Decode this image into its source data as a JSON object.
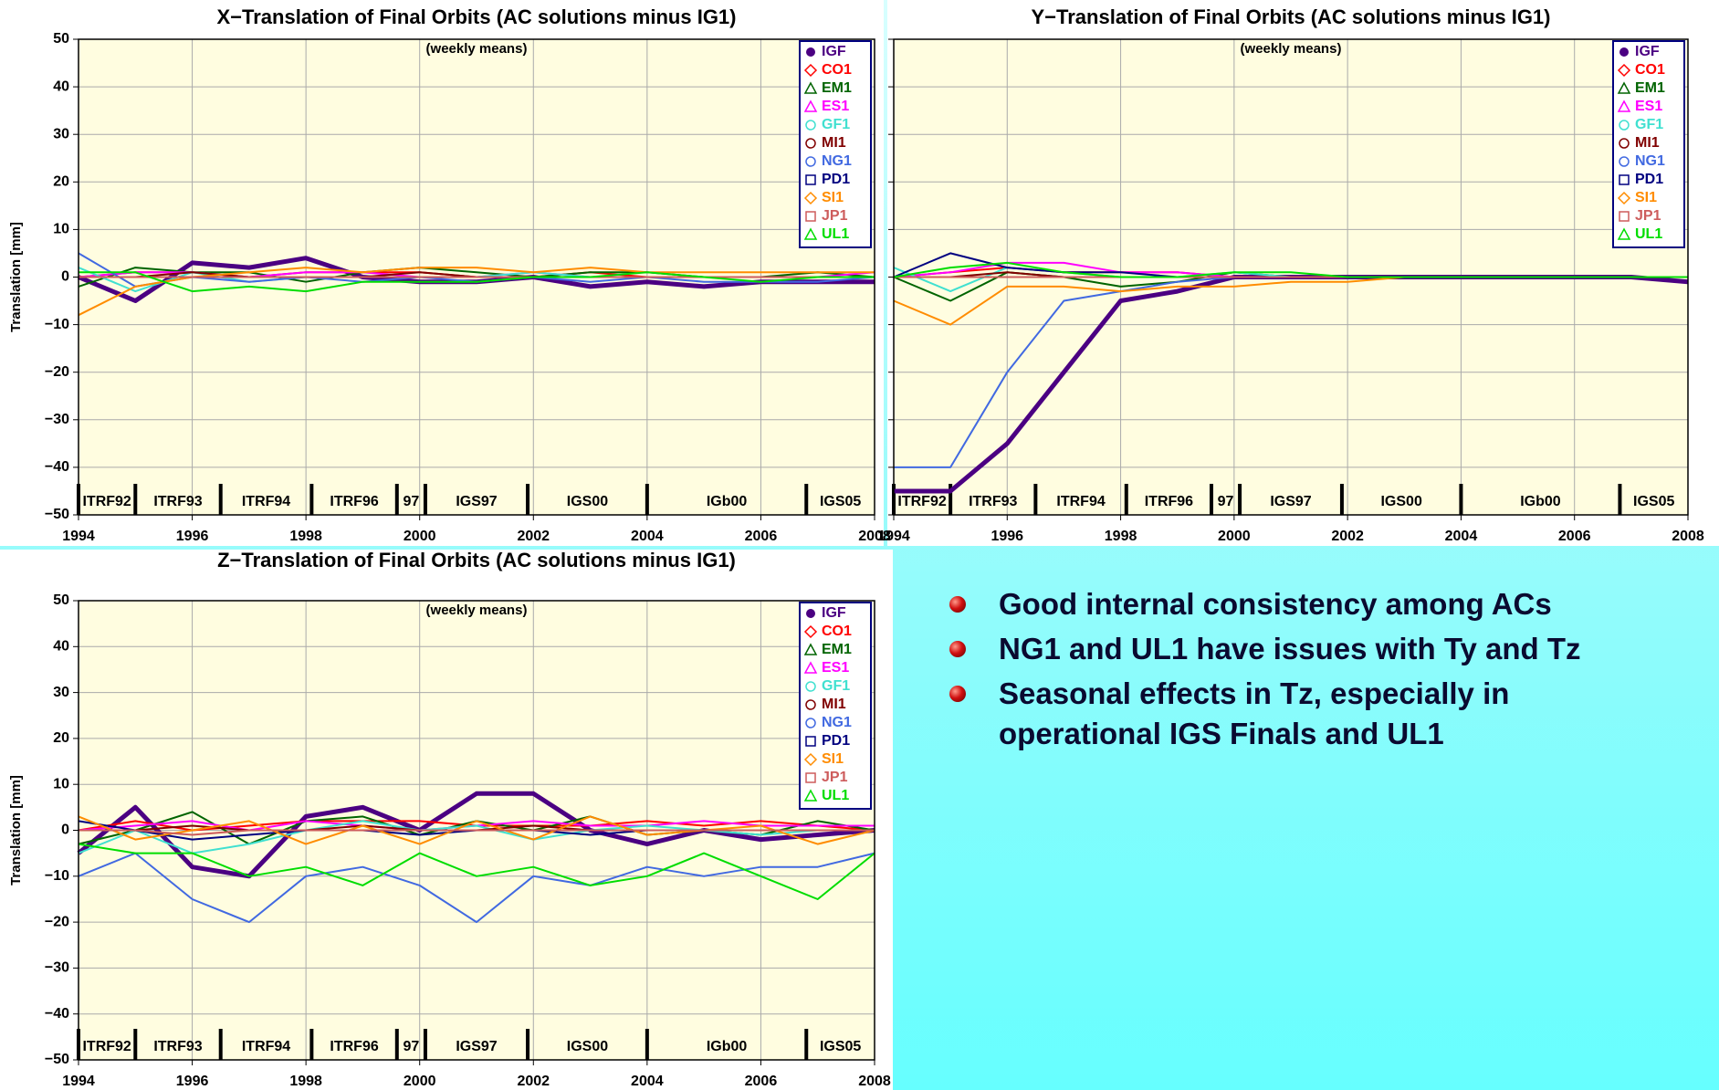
{
  "chart_data": [
    {
      "type": "line",
      "title": "X−Translation of Final Orbits (AC solutions minus IG1)",
      "subtitle": "(weekly means)",
      "ylabel": "Translation [mm]",
      "x": [
        1994,
        1995,
        1996,
        1997,
        1998,
        1999,
        2000,
        2001,
        2002,
        2003,
        2004,
        2005,
        2006,
        2007,
        2008
      ],
      "xlim": [
        1994,
        2008
      ],
      "xticks": [
        1994,
        1996,
        1998,
        2000,
        2002,
        2004,
        2006,
        2008
      ],
      "ylim": [
        -50,
        50
      ],
      "yticks": [
        {
          "value": -50,
          "label": "−50"
        },
        {
          "value": -40,
          "label": "−40"
        },
        {
          "value": -30,
          "label": "−30"
        },
        {
          "value": -20,
          "label": "−20"
        },
        {
          "value": -10,
          "label": "−10"
        },
        0,
        10,
        20,
        30,
        40,
        50
      ],
      "show_ytick_labels": true,
      "grid": true,
      "frames": [
        {
          "label": "ITRF92",
          "start": 1994.0
        },
        {
          "label": "ITRF93",
          "start": 1995.0
        },
        {
          "label": "ITRF94",
          "start": 1996.5
        },
        {
          "label": "ITRF96",
          "start": 1998.1
        },
        {
          "label": "97",
          "start": 1999.6
        },
        {
          "label": "IGS97",
          "start": 2000.1
        },
        {
          "label": "IGS00",
          "start": 2001.9
        },
        {
          "label": "IGb00",
          "start": 2004.0
        },
        {
          "label": "IGS05",
          "start": 2006.8
        }
      ],
      "series": [
        {
          "name": "IGF",
          "color": "#4b0082",
          "marker": "dot",
          "values": [
            0,
            -5,
            3,
            2,
            4,
            0,
            -1,
            -1,
            0,
            -2,
            -1,
            -2,
            -1,
            -1,
            -1
          ]
        },
        {
          "name": "CO1",
          "color": "#ff0000",
          "marker": "diamond",
          "values": [
            0,
            1,
            1,
            0,
            1,
            1,
            1,
            0,
            0,
            1,
            0,
            0,
            0,
            0,
            0
          ]
        },
        {
          "name": "EM1",
          "color": "#006400",
          "marker": "triangle",
          "values": [
            -2,
            2,
            1,
            1,
            -1,
            1,
            2,
            1,
            0,
            1,
            1,
            0,
            0,
            1,
            0
          ]
        },
        {
          "name": "ES1",
          "color": "#ff00ff",
          "marker": "triangle",
          "values": [
            0,
            1,
            1,
            0,
            1,
            1,
            0,
            0,
            1,
            0,
            0,
            0,
            0,
            0,
            1
          ]
        },
        {
          "name": "GF1",
          "color": "#40e0d0",
          "marker": "circle",
          "values": [
            2,
            -3,
            1,
            -1,
            0,
            0,
            0,
            0,
            1,
            0,
            0,
            0,
            0,
            0,
            0
          ]
        },
        {
          "name": "MI1",
          "color": "#800000",
          "marker": "circle",
          "values": [
            0,
            0,
            1,
            0,
            0,
            0,
            1,
            0,
            0,
            0,
            0,
            0,
            0,
            0,
            0
          ]
        },
        {
          "name": "NG1",
          "color": "#4169e1",
          "marker": "circle",
          "values": [
            5,
            -2,
            0,
            -1,
            0,
            -1,
            0,
            -1,
            0,
            -1,
            0,
            -1,
            -1,
            -1,
            0
          ]
        },
        {
          "name": "PD1",
          "color": "#000080",
          "marker": "square",
          "values": [
            0,
            0,
            0,
            0,
            0,
            0,
            0,
            0,
            0,
            0,
            0,
            0,
            0,
            0,
            0
          ]
        },
        {
          "name": "SI1",
          "color": "#ff8c00",
          "marker": "diamond",
          "values": [
            -8,
            -2,
            0,
            1,
            2,
            1,
            2,
            2,
            1,
            2,
            1,
            1,
            1,
            1,
            1
          ]
        },
        {
          "name": "JP1",
          "color": "#cd5c5c",
          "marker": "square",
          "values": [
            0,
            0,
            0,
            0,
            0,
            0,
            0,
            0,
            0,
            0,
            0,
            0,
            0,
            0,
            0
          ]
        },
        {
          "name": "UL1",
          "color": "#00dd00",
          "marker": "triangle",
          "values": [
            1,
            1,
            -3,
            -2,
            -3,
            -1,
            -1,
            -1,
            0,
            0,
            1,
            0,
            -1,
            0,
            0
          ]
        }
      ]
    },
    {
      "type": "line",
      "title": "Y−Translation of Final Orbits (AC solutions minus IG1)",
      "subtitle": "(weekly means)",
      "x": [
        1994,
        1995,
        1996,
        1997,
        1998,
        1999,
        2000,
        2001,
        2002,
        2003,
        2004,
        2005,
        2006,
        2007,
        2008
      ],
      "xlim": [
        1994,
        2008
      ],
      "xticks": [
        1994,
        1996,
        1998,
        2000,
        2002,
        2004,
        2006,
        2008
      ],
      "ylim": [
        -50,
        50
      ],
      "yticks": [
        -50,
        -40,
        -30,
        -20,
        -10,
        0,
        10,
        20,
        30,
        40,
        50
      ],
      "show_ytick_labels": false,
      "grid": true,
      "frames": [
        {
          "label": "ITRF92",
          "start": 1994.0
        },
        {
          "label": "ITRF93",
          "start": 1995.0
        },
        {
          "label": "ITRF94",
          "start": 1996.5
        },
        {
          "label": "ITRF96",
          "start": 1998.1
        },
        {
          "label": "97",
          "start": 1999.6
        },
        {
          "label": "IGS97",
          "start": 2000.1
        },
        {
          "label": "IGS00",
          "start": 2001.9
        },
        {
          "label": "IGb00",
          "start": 2004.0
        },
        {
          "label": "IGS05",
          "start": 2006.8
        }
      ],
      "series": [
        {
          "name": "IGF",
          "color": "#4b0082",
          "marker": "dot",
          "values": [
            -45,
            -45,
            -35,
            -20,
            -5,
            -3,
            0,
            0,
            0,
            0,
            0,
            0,
            0,
            0,
            -1
          ]
        },
        {
          "name": "CO1",
          "color": "#ff0000",
          "marker": "diamond",
          "values": [
            0,
            1,
            2,
            1,
            1,
            1,
            0,
            0,
            0,
            0,
            0,
            0,
            0,
            0,
            0
          ]
        },
        {
          "name": "EM1",
          "color": "#006400",
          "marker": "triangle",
          "values": [
            0,
            -5,
            1,
            0,
            -2,
            -1,
            1,
            0,
            0,
            0,
            0,
            0,
            0,
            0,
            0
          ]
        },
        {
          "name": "ES1",
          "color": "#ff00ff",
          "marker": "triangle",
          "values": [
            0,
            1,
            3,
            3,
            1,
            1,
            0,
            0,
            0,
            0,
            0,
            0,
            0,
            0,
            0
          ]
        },
        {
          "name": "GF1",
          "color": "#40e0d0",
          "marker": "circle",
          "values": [
            2,
            -3,
            2,
            1,
            0,
            0,
            1,
            0,
            0,
            0,
            0,
            0,
            0,
            0,
            0
          ]
        },
        {
          "name": "MI1",
          "color": "#800000",
          "marker": "circle",
          "values": [
            0,
            0,
            1,
            0,
            0,
            0,
            0,
            0,
            0,
            0,
            0,
            0,
            0,
            0,
            0
          ]
        },
        {
          "name": "NG1",
          "color": "#4169e1",
          "marker": "circle",
          "values": [
            -40,
            -40,
            -20,
            -5,
            -3,
            -1,
            0,
            0,
            0,
            0,
            0,
            0,
            0,
            0,
            0
          ]
        },
        {
          "name": "PD1",
          "color": "#000080",
          "marker": "square",
          "values": [
            0,
            5,
            2,
            1,
            1,
            0,
            0,
            0,
            0,
            0,
            0,
            0,
            0,
            0,
            0
          ]
        },
        {
          "name": "SI1",
          "color": "#ff8c00",
          "marker": "diamond",
          "values": [
            -5,
            -10,
            -2,
            -2,
            -3,
            -2,
            -2,
            -1,
            -1,
            0,
            0,
            0,
            0,
            0,
            0
          ]
        },
        {
          "name": "JP1",
          "color": "#cd5c5c",
          "marker": "square",
          "values": [
            0,
            0,
            0,
            0,
            0,
            0,
            0,
            0,
            0,
            0,
            0,
            0,
            0,
            0,
            0
          ]
        },
        {
          "name": "UL1",
          "color": "#00dd00",
          "marker": "triangle",
          "values": [
            0,
            2,
            3,
            1,
            0,
            0,
            1,
            1,
            0,
            0,
            0,
            0,
            0,
            0,
            0
          ]
        }
      ]
    },
    {
      "type": "line",
      "title": "Z−Translation of Final Orbits (AC solutions minus IG1)",
      "subtitle": "(weekly means)",
      "ylabel": "Translation [mm]",
      "x": [
        1994,
        1995,
        1996,
        1997,
        1998,
        1999,
        2000,
        2001,
        2002,
        2003,
        2004,
        2005,
        2006,
        2007,
        2008
      ],
      "xlim": [
        1994,
        2008
      ],
      "xticks": [
        1994,
        1996,
        1998,
        2000,
        2002,
        2004,
        2006,
        2008
      ],
      "ylim": [
        -50,
        50
      ],
      "yticks": [
        {
          "value": -50,
          "label": "−50"
        },
        {
          "value": -40,
          "label": "−40"
        },
        {
          "value": -30,
          "label": "−30"
        },
        {
          "value": -20,
          "label": "−20"
        },
        {
          "value": -10,
          "label": "−10"
        },
        0,
        10,
        20,
        30,
        40,
        50
      ],
      "show_ytick_labels": true,
      "grid": true,
      "frames": [
        {
          "label": "ITRF92",
          "start": 1994.0
        },
        {
          "label": "ITRF93",
          "start": 1995.0
        },
        {
          "label": "ITRF94",
          "start": 1996.5
        },
        {
          "label": "ITRF96",
          "start": 1998.1
        },
        {
          "label": "97",
          "start": 1999.6
        },
        {
          "label": "IGS97",
          "start": 2000.1
        },
        {
          "label": "IGS00",
          "start": 2001.9
        },
        {
          "label": "IGb00",
          "start": 2004.0
        },
        {
          "label": "IGS05",
          "start": 2006.8
        }
      ],
      "series": [
        {
          "name": "IGF",
          "color": "#4b0082",
          "marker": "dot",
          "values": [
            -5,
            5,
            -8,
            -10,
            3,
            5,
            0,
            8,
            8,
            0,
            -3,
            0,
            -2,
            -1,
            0
          ]
        },
        {
          "name": "CO1",
          "color": "#ff0000",
          "marker": "diamond",
          "values": [
            0,
            2,
            0,
            1,
            2,
            2,
            2,
            1,
            1,
            1,
            2,
            1,
            2,
            1,
            0
          ]
        },
        {
          "name": "EM1",
          "color": "#006400",
          "marker": "triangle",
          "values": [
            -3,
            0,
            4,
            -3,
            2,
            3,
            -1,
            2,
            0,
            3,
            -1,
            0,
            -1,
            2,
            0
          ]
        },
        {
          "name": "ES1",
          "color": "#ff00ff",
          "marker": "triangle",
          "values": [
            0,
            1,
            2,
            0,
            2,
            1,
            0,
            1,
            2,
            1,
            1,
            2,
            1,
            1,
            1
          ]
        },
        {
          "name": "GF1",
          "color": "#40e0d0",
          "marker": "circle",
          "values": [
            -5,
            0,
            -5,
            -3,
            0,
            2,
            0,
            1,
            -2,
            0,
            1,
            0,
            -1,
            0,
            0
          ]
        },
        {
          "name": "MI1",
          "color": "#800000",
          "marker": "circle",
          "values": [
            0,
            0,
            1,
            0,
            0,
            1,
            0,
            0,
            1,
            0,
            0,
            0,
            0,
            0,
            0
          ]
        },
        {
          "name": "NG1",
          "color": "#4169e1",
          "marker": "circle",
          "values": [
            -10,
            -5,
            -15,
            -20,
            -10,
            -8,
            -12,
            -20,
            -10,
            -12,
            -8,
            -10,
            -8,
            -8,
            -5
          ]
        },
        {
          "name": "PD1",
          "color": "#000080",
          "marker": "square",
          "values": [
            2,
            0,
            -2,
            -1,
            0,
            0,
            -1,
            0,
            0,
            -1,
            0,
            0,
            0,
            0,
            0
          ]
        },
        {
          "name": "SI1",
          "color": "#ff8c00",
          "marker": "diamond",
          "values": [
            3,
            -2,
            0,
            2,
            -3,
            1,
            -3,
            2,
            -2,
            3,
            -1,
            0,
            1,
            -3,
            0
          ]
        },
        {
          "name": "JP1",
          "color": "#cd5c5c",
          "marker": "square",
          "values": [
            0,
            0,
            -1,
            0,
            0,
            0,
            0,
            0,
            0,
            0,
            0,
            0,
            0,
            0,
            0
          ]
        },
        {
          "name": "UL1",
          "color": "#00dd00",
          "marker": "triangle",
          "values": [
            -3,
            -5,
            -5,
            -10,
            -8,
            -12,
            -5,
            -10,
            -8,
            -12,
            -10,
            -5,
            -10,
            -15,
            -5
          ]
        }
      ]
    }
  ],
  "bullets": [
    "Good internal consistency among ACs",
    "NG1 and UL1 have issues with Ty and Tz",
    "Seasonal effects in Tz, especially in operational IGS Finals and UL1"
  ]
}
